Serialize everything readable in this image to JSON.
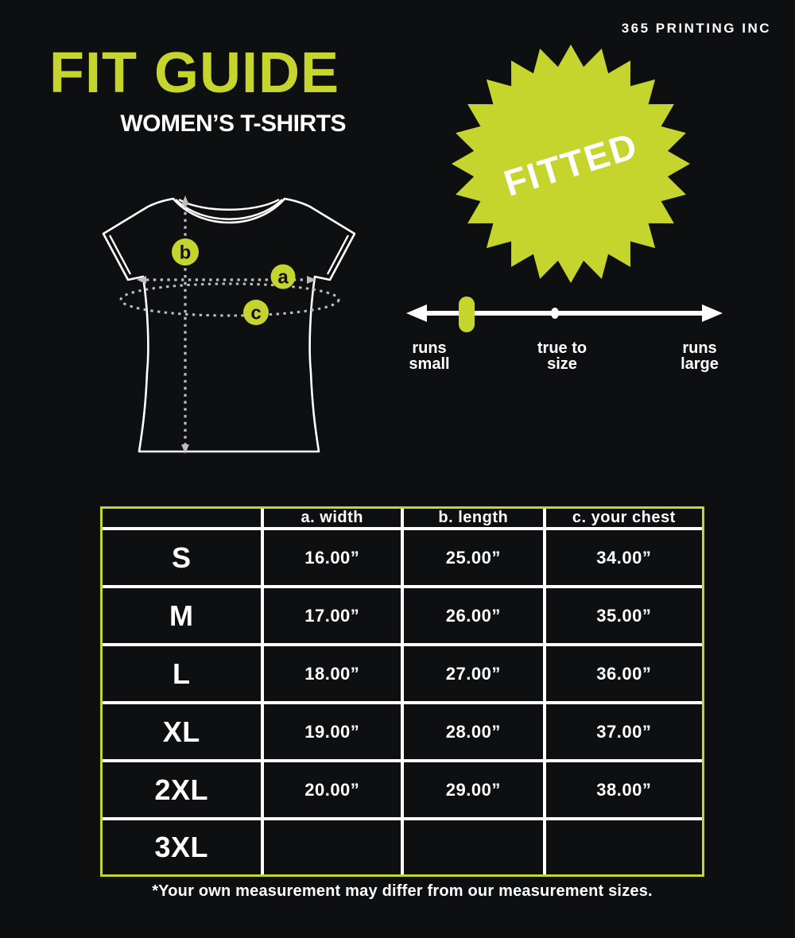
{
  "brand": "365 PRINTING INC",
  "title": "FIT GUIDE",
  "subtitle": "WOMEN’S T-SHIRTS",
  "badge": "FITTED",
  "diagram": {
    "markers": {
      "a": "a",
      "b": "b",
      "c": "c"
    }
  },
  "scale": {
    "selected": "runs small",
    "labels": [
      {
        "line1": "runs",
        "line2": "small"
      },
      {
        "line1": "true to",
        "line2": "size"
      },
      {
        "line1": "runs",
        "line2": "large"
      }
    ]
  },
  "table": {
    "headers": [
      "",
      "a. width",
      "b. length",
      "c. your chest"
    ],
    "rows": [
      {
        "size": "S",
        "width": "16.00”",
        "length": "25.00”",
        "chest": "34.00”"
      },
      {
        "size": "M",
        "width": "17.00”",
        "length": "26.00”",
        "chest": "35.00”"
      },
      {
        "size": "L",
        "width": "18.00”",
        "length": "27.00”",
        "chest": "36.00”"
      },
      {
        "size": "XL",
        "width": "19.00”",
        "length": "28.00”",
        "chest": "37.00”"
      },
      {
        "size": "2XL",
        "width": "20.00”",
        "length": "29.00”",
        "chest": "38.00”"
      },
      {
        "size": "3XL",
        "width": "",
        "length": "",
        "chest": ""
      }
    ]
  },
  "footnote": "*Your own measurement may differ from our measurement sizes.",
  "colors": {
    "accent": "#c6d42e",
    "background": "#0d0f10",
    "text": "#ffffff",
    "dotted": "#bdbdbd",
    "ink": "#101214"
  }
}
